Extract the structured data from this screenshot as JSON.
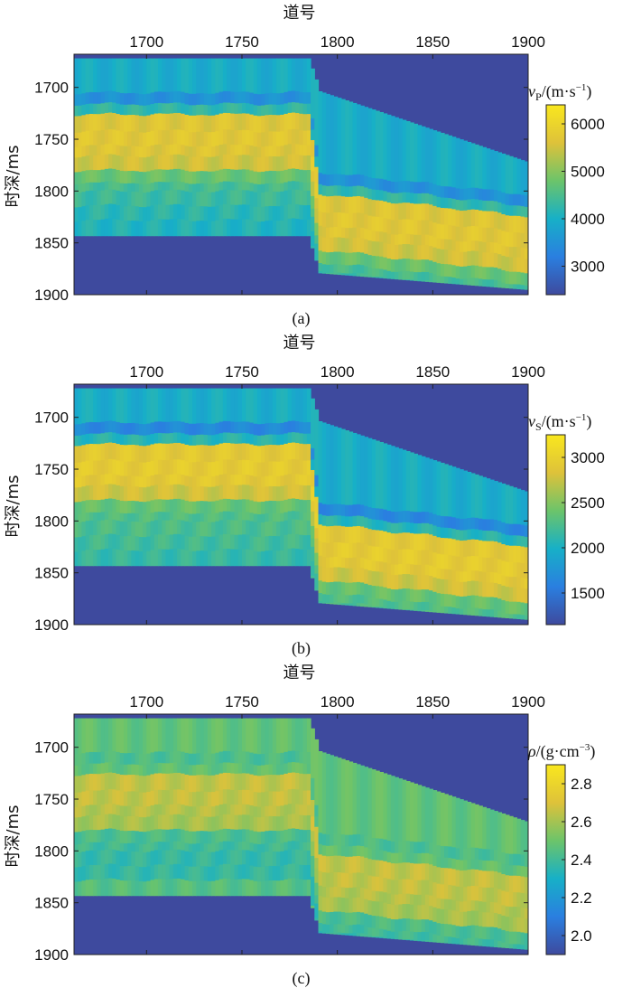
{
  "chart_data": [
    {
      "type": "heatmap",
      "caption": "(a)",
      "xlabel": "道号",
      "ylabel": "时深/ms",
      "x_ticks": [
        1700,
        1750,
        1800,
        1850,
        1900
      ],
      "y_ticks": [
        1700,
        1750,
        1800,
        1850,
        1900
      ],
      "xlim": [
        1662,
        1900
      ],
      "ylim": [
        1900,
        1668
      ],
      "colorbar": {
        "title_symbol": "v",
        "title_sub": "P",
        "title_unit": "/(m·s",
        "title_exp": "−1",
        "title_close": ")",
        "ticks": [
          3000,
          4000,
          5000,
          6000
        ],
        "range": [
          2400,
          6400
        ]
      },
      "background_value": 2400,
      "profile": {
        "trace_break": 1785,
        "top_left": 1672,
        "top_right_start": 1700,
        "top_right_end": 1772,
        "bottom_left": 1843,
        "bottom_right_start": 1878,
        "bottom_right_end": 1895,
        "right_shift": 92
      },
      "layers": [
        {
          "depth": 1672,
          "value": 4000
        },
        {
          "depth": 1705,
          "value": 3900
        },
        {
          "depth": 1716,
          "value": 3100
        },
        {
          "depth": 1726,
          "value": 5400
        },
        {
          "depth": 1742,
          "value": 5900
        },
        {
          "depth": 1756,
          "value": 5500
        },
        {
          "depth": 1766,
          "value": 5800
        },
        {
          "depth": 1780,
          "value": 5200
        },
        {
          "depth": 1792,
          "value": 4300
        },
        {
          "depth": 1800,
          "value": 4600
        },
        {
          "depth": 1814,
          "value": 4100
        },
        {
          "depth": 1828,
          "value": 4300
        },
        {
          "depth": 1843,
          "value": 3900
        }
      ],
      "colormap": [
        "#3e4a9e",
        "#2a7fe0",
        "#17b0c7",
        "#6cc46a",
        "#dec23a",
        "#f9e71e"
      ]
    },
    {
      "type": "heatmap",
      "caption": "(b)",
      "xlabel": "道号",
      "ylabel": "时深/ms",
      "x_ticks": [
        1700,
        1750,
        1800,
        1850,
        1900
      ],
      "y_ticks": [
        1700,
        1750,
        1800,
        1850,
        1900
      ],
      "xlim": [
        1662,
        1900
      ],
      "ylim": [
        1900,
        1668
      ],
      "colorbar": {
        "title_symbol": "v",
        "title_sub": "S",
        "title_unit": "/(m·s",
        "title_exp": "−1",
        "title_close": ")",
        "ticks": [
          1500,
          2000,
          2500,
          3000
        ],
        "range": [
          1150,
          3250
        ]
      },
      "background_value": 1150,
      "profile": {
        "trace_break": 1785,
        "top_left": 1672,
        "top_right_start": 1700,
        "top_right_end": 1772,
        "bottom_left": 1843,
        "bottom_right_start": 1878,
        "bottom_right_end": 1895,
        "right_shift": 92
      },
      "layers": [
        {
          "depth": 1672,
          "value": 2000
        },
        {
          "depth": 1705,
          "value": 1950
        },
        {
          "depth": 1716,
          "value": 1350
        },
        {
          "depth": 1726,
          "value": 2800
        },
        {
          "depth": 1742,
          "value": 3000
        },
        {
          "depth": 1756,
          "value": 2850
        },
        {
          "depth": 1766,
          "value": 2950
        },
        {
          "depth": 1780,
          "value": 2600
        },
        {
          "depth": 1792,
          "value": 2150
        },
        {
          "depth": 1800,
          "value": 2400
        },
        {
          "depth": 1814,
          "value": 2100
        },
        {
          "depth": 1828,
          "value": 2300
        },
        {
          "depth": 1843,
          "value": 2000
        }
      ],
      "colormap": [
        "#3e4a9e",
        "#2a7fe0",
        "#17b0c7",
        "#6cc46a",
        "#dec23a",
        "#f9e71e"
      ]
    },
    {
      "type": "heatmap",
      "caption": "(c)",
      "xlabel": "道号",
      "ylabel": "时深/ms",
      "x_ticks": [
        1700,
        1750,
        1800,
        1850,
        1900
      ],
      "y_ticks": [
        1700,
        1750,
        1800,
        1850,
        1900
      ],
      "xlim": [
        1662,
        1900
      ],
      "ylim": [
        1900,
        1668
      ],
      "colorbar": {
        "title_symbol": "ρ",
        "title_sub": "",
        "title_unit": "/(g·cm",
        "title_exp": "−3",
        "title_close": ")",
        "ticks": [
          2.0,
          2.2,
          2.4,
          2.6,
          2.8
        ],
        "range": [
          1.9,
          2.9
        ]
      },
      "background_value": 1.9,
      "profile": {
        "trace_break": 1785,
        "top_left": 1672,
        "top_right_start": 1700,
        "top_right_end": 1772,
        "bottom_left": 1843,
        "bottom_right_start": 1878,
        "bottom_right_end": 1895,
        "right_shift": 92
      },
      "layers": [
        {
          "depth": 1672,
          "value": 2.5
        },
        {
          "depth": 1705,
          "value": 2.45
        },
        {
          "depth": 1716,
          "value": 2.4
        },
        {
          "depth": 1726,
          "value": 2.55
        },
        {
          "depth": 1742,
          "value": 2.75
        },
        {
          "depth": 1756,
          "value": 2.55
        },
        {
          "depth": 1766,
          "value": 2.7
        },
        {
          "depth": 1780,
          "value": 2.5
        },
        {
          "depth": 1792,
          "value": 2.35
        },
        {
          "depth": 1800,
          "value": 2.45
        },
        {
          "depth": 1814,
          "value": 2.3
        },
        {
          "depth": 1828,
          "value": 2.45
        },
        {
          "depth": 1843,
          "value": 2.45
        }
      ],
      "colormap": [
        "#3e4a9e",
        "#2a7fe0",
        "#17b0c7",
        "#6cc46a",
        "#dec23a",
        "#f9e71e"
      ]
    }
  ]
}
